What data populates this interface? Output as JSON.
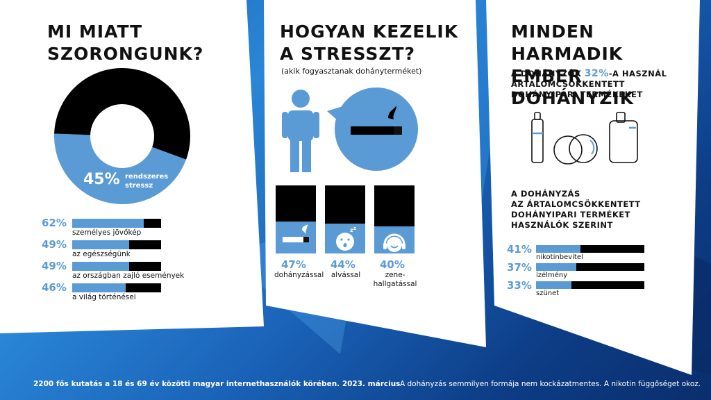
{
  "panel1": {
    "title_line1": "MI MIATT",
    "title_line2": "SZORONGUNK?",
    "donut_pct": "45%",
    "donut_label_line1": "rendszeres",
    "donut_label_line2": "stressz",
    "rows": [
      {
        "pct": "62%",
        "label": "személyes jövőkép"
      },
      {
        "pct": "49%",
        "label": "az egészségünk"
      },
      {
        "pct": "49%",
        "label": "az országban zajló események"
      },
      {
        "pct": "46%",
        "label": "a világ történései"
      }
    ]
  },
  "panel2": {
    "title_line1": "HOGYAN KEZELIK",
    "title_line2": "A STRESSZT?",
    "subtitle": "(akik fogyasztanak dohányterméket)",
    "items": [
      {
        "pct": "47%",
        "label_line1": "dohányzással",
        "label_line2": ""
      },
      {
        "pct": "44%",
        "label_line1": "alvással",
        "label_line2": ""
      },
      {
        "pct": "40%",
        "label_line1": "zene-",
        "label_line2": "hallgatással"
      }
    ]
  },
  "panel3": {
    "title_line1": "MINDEN HARMADIK",
    "title_line2": "EMBER DOHÁNYZIK",
    "stat_pre": "A DOHÁNYZÓK ",
    "stat_pct": "32%",
    "stat_post": "-A  HASZNÁL",
    "stat_line2": "ÁRTALOMCSÖKKENTETT",
    "stat_line3": "DOHÁNYIPARI TERMÉKEKET",
    "sub_line1": "A DOHÁNYZÁS",
    "sub_line2": "AZ ÁRTALOMCSÖKKENTETT",
    "sub_line3": "DOHÁNYIPARI TERMÉKET",
    "sub_line4": "HASZNÁLÓK SZERINT",
    "rows": [
      {
        "pct": "41%",
        "label": "nikotinbevitel"
      },
      {
        "pct": "37%",
        "label": "ízélmény"
      },
      {
        "pct": "33%",
        "label": "szünet"
      }
    ]
  },
  "footer": {
    "left": "2200 fős kutatás  a 18 és 69 év közötti magyar internethasználók körében. 2023. március",
    "right": "A dohányzás semmilyen formája nem kockázatmentes. A nikotin függőséget okoz."
  },
  "colors": {
    "accent": "#5b9bd5",
    "dark": "#000000"
  },
  "icons": [
    "person-icon",
    "cigarette-icon",
    "sleeping-face-icon",
    "headphones-face-icon",
    "e-cigarette-icon",
    "heated-tobacco-icon",
    "vape-device-icon"
  ],
  "chart_data": [
    {
      "type": "pie",
      "values": [
        45,
        55
      ],
      "categories": [
        "rendszeres stressz",
        ""
      ]
    },
    {
      "type": "bar",
      "categories": [
        "személyes jövőkép",
        "az egészségünk",
        "az országban zajló események",
        "a világ történései"
      ],
      "values": [
        62,
        49,
        49,
        46
      ]
    },
    {
      "type": "bar",
      "categories": [
        "dohányzással",
        "alvással",
        "zene-hallgatással"
      ],
      "values": [
        47,
        44,
        40
      ]
    },
    {
      "type": "bar",
      "categories": [
        "nikotinbevitel",
        "ízélmény",
        "szünet"
      ],
      "values": [
        41,
        37,
        33
      ]
    }
  ]
}
